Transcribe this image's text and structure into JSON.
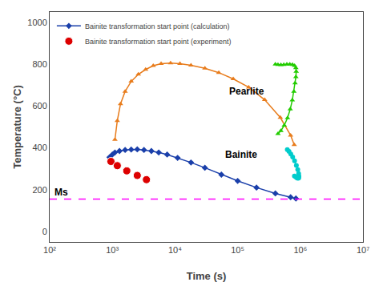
{
  "chart_data": {
    "type": "line",
    "xlabel": "Time (s)",
    "ylabel": "Temperature (°C)",
    "log": "x",
    "xlim": [
      100,
      10000000
    ],
    "xticks": [
      {
        "value": 100,
        "label": "10²"
      },
      {
        "value": 1000,
        "label": "10³"
      },
      {
        "value": 10000,
        "label": "10⁴"
      },
      {
        "value": 100000,
        "label": "10⁵"
      },
      {
        "value": 1000000,
        "label": "10⁶"
      },
      {
        "value": 10000000,
        "label": "10⁷"
      }
    ],
    "ylim": [
      -50,
      1050
    ],
    "yticks": [
      0,
      200,
      400,
      600,
      800,
      1000
    ],
    "grid": false,
    "legend": "upper left",
    "series": [
      {
        "name": "Bainite transformation start point (calculation)",
        "type": "line",
        "color": "#1a3faa",
        "marker": "diamond",
        "x": [
          900,
          1000,
          1100,
          1300,
          1600,
          2000,
          2500,
          3200,
          4200,
          5500,
          7500,
          11000,
          18000,
          30000,
          55000,
          100000,
          200000,
          400000,
          700000,
          850000
        ],
        "values": [
          355,
          368,
          378,
          385,
          390,
          392,
          393,
          390,
          385,
          378,
          368,
          352,
          330,
          305,
          272,
          242,
          210,
          182,
          164,
          158
        ]
      },
      {
        "name": "Bainite transformation start point (experiment)",
        "type": "scatter",
        "color": "#dd0000",
        "marker": "circle",
        "x": [
          950,
          1200,
          1700,
          2500,
          3500
        ],
        "values": [
          335,
          315,
          290,
          268,
          248
        ]
      },
      {
        "type": "line",
        "color": "#e87c1c",
        "marker": "triangle-up",
        "x": [
          1100,
          1200,
          1350,
          1600,
          2000,
          2600,
          3400,
          4500,
          6000,
          8500,
          12000,
          18000,
          30000,
          50000,
          85000,
          150000,
          270000,
          480000,
          700000,
          800000
        ],
        "values": [
          440,
          530,
          610,
          670,
          718,
          752,
          775,
          793,
          803,
          806,
          803,
          795,
          781,
          760,
          730,
          690,
          630,
          545,
          460,
          415
        ]
      },
      {
        "type": "line",
        "color": "#22cc00",
        "marker": "triangle-up",
        "x": [
          400000,
          440000,
          490000,
          545000,
          610000,
          680000,
          750000,
          810000,
          850000,
          860000,
          850000,
          825000,
          790000,
          745000,
          690000,
          625000,
          555000,
          490000,
          440000
        ],
        "values": [
          800,
          798,
          797,
          798,
          800,
          800,
          798,
          793,
          783,
          765,
          740,
          710,
          670,
          628,
          585,
          543,
          508,
          482,
          467
        ]
      },
      {
        "type": "line",
        "color": "#00cccc",
        "marker": "circle",
        "x": [
          620000,
          660000,
          705000,
          755000,
          810000,
          865000,
          910000,
          940000,
          950000,
          945000,
          925000,
          890000,
          850000,
          805000
        ],
        "values": [
          392,
          383,
          371,
          356,
          338,
          316,
          296,
          277,
          264,
          257,
          255,
          256,
          260,
          265
        ]
      }
    ],
    "reference_lines": [
      {
        "y": 155,
        "label": "Ms",
        "color": "magenta",
        "line_style": "dashed"
      }
    ],
    "annotations": [
      {
        "text": "Pearlite",
        "x": 70000,
        "y": 635
      },
      {
        "text": "Bainite",
        "x": 60000,
        "y": 333
      }
    ]
  }
}
